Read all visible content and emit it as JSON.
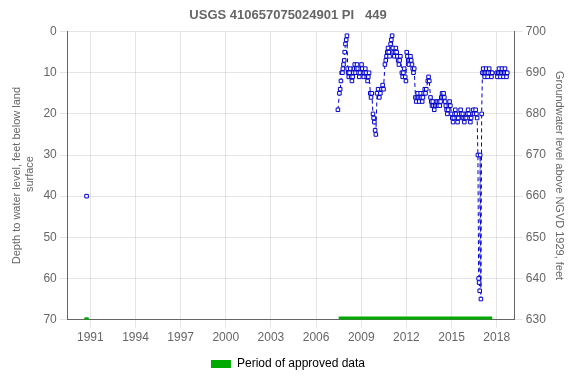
{
  "chart_data": {
    "type": "line",
    "title": "USGS 410657075024901 PI   449",
    "ylabel": "Depth to water level, feet below land\n surface",
    "y2label": "Groundwater level above NGVD 1929, feet",
    "xlim": [
      1989.5,
      2019.2
    ],
    "xticks": [
      1991,
      1994,
      1997,
      2000,
      2003,
      2006,
      2009,
      2012,
      2015,
      2018
    ],
    "ylim": [
      70,
      0
    ],
    "yticks": [
      0,
      10,
      20,
      30,
      40,
      50,
      60,
      70
    ],
    "y2lim": [
      630,
      700
    ],
    "y2ticks": [
      630,
      640,
      650,
      660,
      670,
      680,
      690,
      700
    ],
    "grid": true,
    "legend": "bottom",
    "series": [
      {
        "color": "#0000cc",
        "line_style": "dashed",
        "marker": "open_square",
        "x": [
          2007.45,
          2007.55,
          2007.6,
          2007.65,
          2007.7,
          2007.75,
          2007.78,
          2007.82,
          2007.87,
          2007.9,
          2007.95,
          2008.0,
          2008.05,
          2008.1,
          2008.13,
          2008.17,
          2008.22,
          2008.27,
          2008.33,
          2008.38,
          2008.43,
          2008.48,
          2008.52,
          2008.57,
          2008.62,
          2008.67,
          2008.72,
          2008.77,
          2008.82,
          2008.87,
          2008.92,
          2008.97,
          2009.02,
          2009.07,
          2009.12,
          2009.17,
          2009.22,
          2009.27,
          2009.32,
          2009.37,
          2009.42,
          2009.47,
          2009.52,
          2009.6,
          2009.65,
          2009.7,
          2009.78,
          2009.82,
          2009.87,
          2009.92,
          2009.97,
          2010.05,
          2010.12,
          2010.2,
          2010.27,
          2010.35,
          2010.42,
          2010.48,
          2010.57,
          2010.63,
          2010.68,
          2010.73,
          2010.78,
          2010.83,
          2010.88,
          2010.95,
          2011.0,
          2011.05,
          2011.1,
          2011.15,
          2011.2,
          2011.25,
          2011.3,
          2011.35,
          2011.4,
          2011.45,
          2011.5,
          2011.55,
          2011.6,
          2011.7,
          2011.75,
          2011.8,
          2011.85,
          2011.92,
          2011.97,
          2012.02,
          2012.07,
          2012.12,
          2012.17,
          2012.22,
          2012.27,
          2012.32,
          2012.37,
          2012.42,
          2012.47,
          2012.52,
          2012.6,
          2012.65,
          2012.7,
          2012.75,
          2012.8,
          2012.85,
          2012.9,
          2012.95,
          2013.0,
          2013.05,
          2013.1,
          2013.15,
          2013.22,
          2013.27,
          2013.32,
          2013.42,
          2013.47,
          2013.52,
          2013.6,
          2013.65,
          2013.7,
          2013.75,
          2013.8,
          2013.85,
          2013.92,
          2013.97,
          2014.02,
          2014.07,
          2014.12,
          2014.17,
          2014.22,
          2014.27,
          2014.32,
          2014.37,
          2014.42,
          2014.47,
          2014.52,
          2014.57,
          2014.62,
          2014.67,
          2014.72,
          2014.77,
          2014.82,
          2014.87,
          2014.92,
          2015.0,
          2015.05,
          2015.1,
          2015.15,
          2015.2,
          2015.25,
          2015.3,
          2015.35,
          2015.4,
          2015.45,
          2015.5,
          2015.6,
          2015.65,
          2015.7,
          2015.75,
          2015.8,
          2015.85,
          2015.9,
          2015.95,
          2016.0,
          2016.05,
          2016.1,
          2016.15,
          2016.2,
          2016.25,
          2016.3,
          2016.4,
          2016.45,
          2016.5,
          2016.6,
          2016.65,
          2016.7,
          2016.75,
          2016.8,
          2016.83,
          2016.87,
          2016.9,
          2016.95,
          2017.0,
          2017.05,
          2017.1,
          2017.15,
          2017.2,
          2017.25,
          2017.3,
          2017.35,
          2017.4,
          2017.45,
          2017.5,
          2017.6,
          2017.65,
          2017.7,
          2018.0,
          2018.05,
          2018.1,
          2018.15,
          2018.2,
          2018.25,
          2018.3,
          2018.35,
          2018.4,
          2018.45,
          2018.5,
          2018.55,
          2018.6,
          2018.65,
          2018.7
        ],
        "values": [
          19,
          15,
          14,
          12,
          10,
          10,
          9,
          8,
          7,
          5,
          3,
          2,
          1,
          9,
          10,
          11,
          10,
          9,
          11,
          12,
          11,
          10,
          9,
          8,
          10,
          9,
          8,
          9,
          10,
          11,
          10,
          9,
          8,
          9,
          10,
          11,
          10,
          9,
          10,
          11,
          12,
          11,
          10,
          15,
          16,
          15,
          20,
          21,
          22,
          24,
          25,
          15,
          14,
          16,
          15,
          14,
          13,
          14,
          8,
          7,
          6,
          5,
          4,
          5,
          6,
          3,
          2,
          1,
          4,
          5,
          6,
          5,
          4,
          5,
          6,
          7,
          8,
          7,
          6,
          10,
          11,
          10,
          9,
          11,
          12,
          5,
          6,
          7,
          8,
          7,
          6,
          7,
          8,
          9,
          10,
          9,
          16,
          17,
          16,
          15,
          16,
          17,
          16,
          15,
          16,
          17,
          16,
          15,
          14,
          15,
          14,
          12,
          11,
          12,
          16,
          17,
          18,
          17,
          18,
          19,
          18,
          17,
          18,
          17,
          18,
          17,
          18,
          17,
          16,
          15,
          16,
          15,
          16,
          17,
          18,
          19,
          20,
          19,
          18,
          17,
          18,
          20,
          21,
          22,
          21,
          20,
          19,
          20,
          21,
          22,
          21,
          20,
          19,
          20,
          21,
          20,
          21,
          22,
          21,
          20,
          21,
          20,
          19,
          20,
          21,
          22,
          21,
          20,
          19,
          20,
          19,
          20,
          21,
          30,
          60,
          61,
          63,
          30,
          65,
          20,
          10,
          9,
          10,
          11,
          10,
          9,
          10,
          11,
          10,
          9,
          10,
          11,
          10,
          10,
          11,
          10,
          9,
          10,
          11,
          10,
          9,
          10,
          11,
          10,
          9,
          10,
          11,
          10
        ]
      },
      {
        "color": "#0000cc",
        "line_style": "none",
        "marker": "open_square",
        "x": [
          1990.75
        ],
        "values": [
          40
        ]
      },
      {
        "color": "#00aa00",
        "line_style": "none",
        "marker": "square",
        "x": [
          1990.75
        ],
        "values": [
          70
        ]
      },
      {
        "name": "Period of approved data",
        "color": "#00aa00",
        "line_style": "solid",
        "marker": "none",
        "x": [
          2007.5,
          2017.7
        ],
        "values": [
          70,
          70
        ]
      }
    ]
  }
}
